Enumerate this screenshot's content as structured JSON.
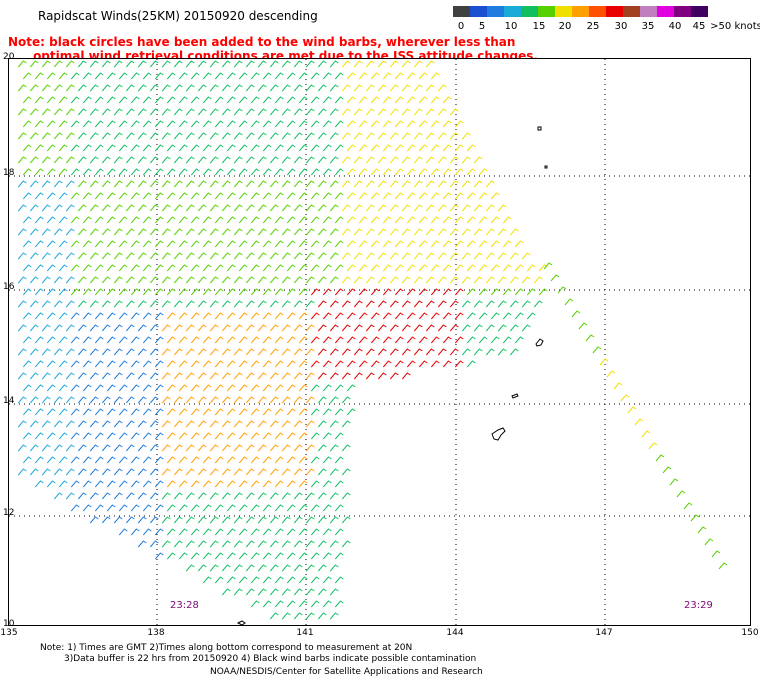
{
  "title": "Rapidscat Winds(25KM) 20150920 descending",
  "note_line1": "Note: black circles have been added to the wind barbs, wherever less than",
  "note_line2": "      optimal wind retrieval conditions are met due to the ISS attitude changes.",
  "legend": {
    "colors": [
      "#404040",
      "#1a4fd0",
      "#1f7be0",
      "#1aaad8",
      "#10c060",
      "#58d000",
      "#f0e000",
      "#ffa000",
      "#ff5000",
      "#e80000",
      "#a04020",
      "#c080c0",
      "#e000e0",
      "#800080",
      "#400060"
    ],
    "labels": [
      "0",
      "5",
      "10",
      "15",
      "20",
      "25",
      "30",
      "35",
      "40",
      "45",
      ">50 knots"
    ]
  },
  "lat_labels": [
    "20",
    "18",
    "16",
    "14",
    "12",
    "10"
  ],
  "lon_labels": [
    "135",
    "138",
    "141",
    "144",
    "147",
    "150"
  ],
  "time_labels": [
    "23:28",
    "23:29"
  ],
  "footer": {
    "line1": "Note: 1) Times are GMT 2)Times along bottom correspond to measurement at 20N",
    "line2": "3)Data buffer is 22 hrs from 20150920 4) Black wind barbs indicate possible contamination",
    "line3": "NOAA/NESDIS/Center for Satellite Applications and Research"
  }
}
